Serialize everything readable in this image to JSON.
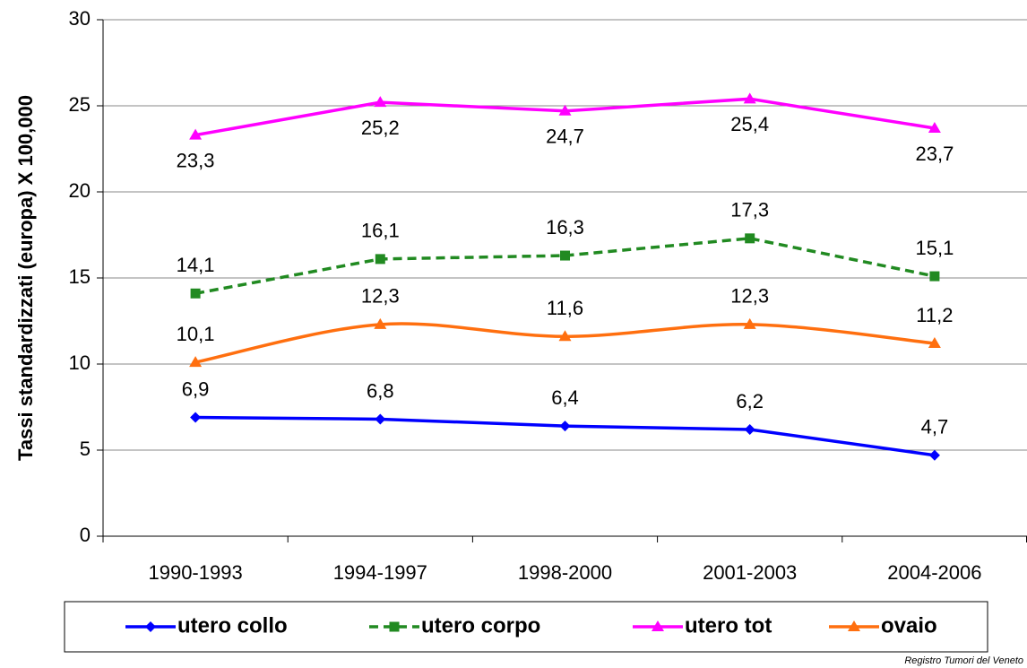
{
  "chart_data": {
    "type": "line",
    "y_label": "Tassi standardizzati (europa)  X 100,000",
    "source": "Registro Tumori del Veneto",
    "categories": [
      "1990-1993",
      "1994-1997",
      "1998-2000",
      "2001-2003",
      "2004-2006"
    ],
    "series": [
      {
        "name": "utero collo",
        "color": "#0000ff",
        "marker": "diamond",
        "dashed": false,
        "smooth": false,
        "values": [
          6.9,
          6.8,
          6.4,
          6.2,
          4.7
        ],
        "value_labels": [
          "6,9",
          "6,8",
          "6,4",
          "6,2",
          "4,7"
        ]
      },
      {
        "name": "utero corpo",
        "color": "#218a21",
        "marker": "square",
        "dashed": true,
        "smooth": false,
        "values": [
          14.1,
          16.1,
          16.3,
          17.3,
          15.1
        ],
        "value_labels": [
          "14,1",
          "16,1",
          "16,3",
          "17,3",
          "15,1"
        ]
      },
      {
        "name": "utero tot",
        "color": "#ff00ff",
        "marker": "triangle",
        "dashed": false,
        "smooth": false,
        "values": [
          23.3,
          25.2,
          24.7,
          25.4,
          23.7
        ],
        "value_labels": [
          "23,3",
          "25,2",
          "24,7",
          "25,4",
          "23,7"
        ]
      },
      {
        "name": "ovaio",
        "color": "#ff6f0f",
        "marker": "triangle",
        "dashed": false,
        "smooth": true,
        "values": [
          10.1,
          12.3,
          11.6,
          12.3,
          11.2
        ],
        "value_labels": [
          "10,1",
          "12,3",
          "11,6",
          "12,3",
          "11,2"
        ]
      }
    ],
    "ylim": [
      0,
      30
    ],
    "yticks": [
      0,
      5,
      10,
      15,
      20,
      25,
      30
    ],
    "grid": true
  }
}
